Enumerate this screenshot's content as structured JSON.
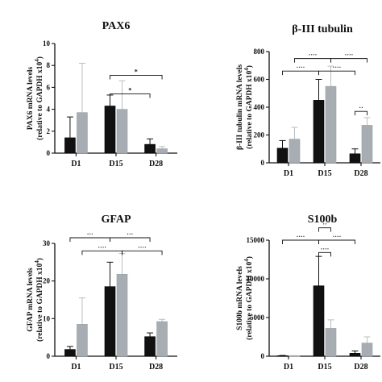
{
  "chart_data": [
    {
      "type": "bar",
      "title": "PAX6",
      "ylabel_line1": "PAX6 mRNA levels",
      "ylabel_line2": "(relative to GAPDH x10",
      "ylabel_sup": "4",
      "ylabel_end": ")",
      "categories": [
        "D1",
        "D15",
        "D28"
      ],
      "ylim": [
        0,
        10
      ],
      "yticks": [
        "0",
        "2",
        "4",
        "6",
        "8",
        "10"
      ],
      "series": [
        {
          "color": "#111111",
          "values": [
            1.4,
            4.3,
            0.8
          ],
          "errors": [
            1.9,
            1.0,
            0.5
          ]
        },
        {
          "color": "#a7adb2",
          "values": [
            3.7,
            4.0,
            0.4
          ],
          "errors": [
            4.5,
            2.6,
            0.2
          ]
        }
      ],
      "significance": [
        {
          "label": "*",
          "y": 7.1,
          "x1": [
            1,
            0
          ],
          "x2": [
            2,
            1
          ]
        },
        {
          "label": "*",
          "y": 5.4,
          "x1": [
            1,
            0
          ],
          "x2": [
            2,
            0
          ]
        }
      ]
    },
    {
      "type": "bar",
      "title": "β-III tubulin",
      "ylabel_line1": "β-III tubulin mRNA levels",
      "ylabel_line2": "(relative to GAPDH x10",
      "ylabel_sup": "4",
      "ylabel_end": ")",
      "categories": [
        "D1",
        "D15",
        "D28"
      ],
      "ylim": [
        0,
        800
      ],
      "yticks": [
        "0",
        "200",
        "400",
        "600",
        "800"
      ],
      "series": [
        {
          "color": "#111111",
          "values": [
            105,
            450,
            65
          ],
          "errors": [
            55,
            150,
            35
          ]
        },
        {
          "color": "#a7adb2",
          "values": [
            170,
            550,
            270
          ],
          "errors": [
            85,
            145,
            55
          ]
        }
      ],
      "significance": [
        {
          "label": "····",
          "y": 750,
          "x1": [
            0,
            1
          ],
          "x2": [
            1,
            1
          ]
        },
        {
          "label": "····",
          "y": 750,
          "x1": [
            1,
            1
          ],
          "x2": [
            2,
            1
          ]
        },
        {
          "label": "····",
          "y": 660,
          "x1": [
            0,
            0
          ],
          "x2": [
            1,
            0
          ]
        },
        {
          "label": "····",
          "y": 660,
          "x1": [
            1,
            0
          ],
          "x2": [
            2,
            0
          ]
        },
        {
          "label": "··",
          "y": 370,
          "x1": [
            2,
            0
          ],
          "x2": [
            2,
            1
          ]
        }
      ]
    },
    {
      "type": "bar",
      "title": "GFAP",
      "ylabel_line1": "GFAP mRNA levels",
      "ylabel_line2": "(relative to GAPDH x10",
      "ylabel_sup": "4",
      "ylabel_end": ")",
      "categories": [
        "D1",
        "D15",
        "D28"
      ],
      "ylim": [
        0,
        30
      ],
      "yticks": [
        "0",
        "10",
        "20",
        "30"
      ],
      "series": [
        {
          "color": "#111111",
          "values": [
            1.8,
            18.5,
            5.2
          ],
          "errors": [
            0.8,
            6.5,
            1.0
          ]
        },
        {
          "color": "#a7adb2",
          "values": [
            8.5,
            21.8,
            9.2
          ],
          "errors": [
            7.0,
            5.5,
            0.6
          ]
        }
      ],
      "significance": [
        {
          "label": "···",
          "y": 31.5,
          "x1": [
            0,
            0
          ],
          "x2": [
            1,
            0
          ]
        },
        {
          "label": "···",
          "y": 31.5,
          "x1": [
            1,
            0
          ],
          "x2": [
            2,
            0
          ]
        },
        {
          "label": "····",
          "y": 28.0,
          "x1": [
            0,
            1
          ],
          "x2": [
            1,
            1
          ]
        },
        {
          "label": "····",
          "y": 28.0,
          "x1": [
            1,
            1
          ],
          "x2": [
            2,
            1
          ]
        }
      ]
    },
    {
      "type": "bar",
      "title": "S100b",
      "ylabel_line1": "S100b mRNA levels",
      "ylabel_line2": "(relative to GAPDH x10",
      "ylabel_sup": "4",
      "ylabel_end": ")",
      "categories": [
        "D1",
        "D15",
        "D28"
      ],
      "ylim": [
        0,
        15000
      ],
      "yticks": [
        "0",
        "5000",
        "10000",
        "15000"
      ],
      "series": [
        {
          "color": "#111111",
          "values": [
            60,
            9100,
            380
          ],
          "errors": [
            40,
            3800,
            300
          ]
        },
        {
          "color": "#a7adb2",
          "values": [
            50,
            3600,
            1700
          ],
          "errors": [
            30,
            1100,
            800
          ]
        }
      ],
      "significance": [
        {
          "label": "··",
          "y": 16600,
          "x1": [
            1,
            0
          ],
          "x2": [
            1,
            1
          ]
        },
        {
          "label": "····",
          "y": 15000,
          "x1": [
            0,
            0
          ],
          "x2": [
            1,
            0
          ]
        },
        {
          "label": "····",
          "y": 15000,
          "x1": [
            1,
            0
          ],
          "x2": [
            2,
            0
          ]
        },
        {
          "label": "····",
          "y": 13400,
          "x1": [
            1,
            0
          ],
          "x2": [
            1,
            1
          ]
        }
      ]
    }
  ]
}
